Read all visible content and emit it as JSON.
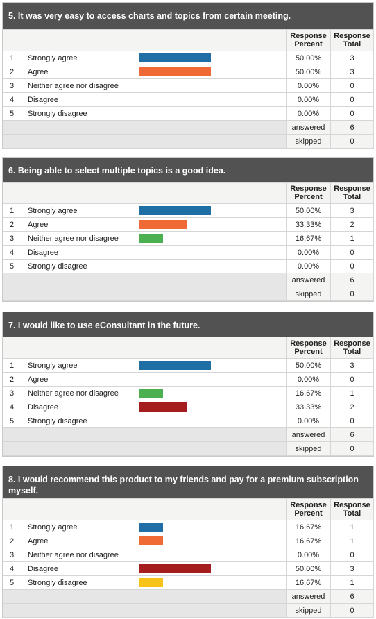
{
  "header": {
    "percent": "Response Percent",
    "total": "Response Total"
  },
  "footer": {
    "answered_label": "answered",
    "skipped_label": "skipped"
  },
  "colors": {
    "blue": "#1f6fa6",
    "orange": "#ef6a34",
    "green": "#4caf50",
    "red": "#a61d1d",
    "yellow": "#f7c21a"
  },
  "questions": [
    {
      "title": "5. It was very easy to access charts and topics from certain meeting.",
      "answered": "6",
      "skipped": "0",
      "rows": [
        {
          "n": "1",
          "label": "Strongly agree",
          "percent": "50.00%",
          "total": "3",
          "value": 50.0,
          "color": "#1f6fa6"
        },
        {
          "n": "2",
          "label": "Agree",
          "percent": "50.00%",
          "total": "3",
          "value": 50.0,
          "color": "#ef6a34"
        },
        {
          "n": "3",
          "label": "Neither agree nor disagree",
          "percent": "0.00%",
          "total": "0",
          "value": 0,
          "color": "#4caf50"
        },
        {
          "n": "4",
          "label": "Disagree",
          "percent": "0.00%",
          "total": "0",
          "value": 0,
          "color": "#a61d1d"
        },
        {
          "n": "5",
          "label": "Strongly disagree",
          "percent": "0.00%",
          "total": "0",
          "value": 0,
          "color": "#f7c21a"
        }
      ]
    },
    {
      "title": "6. Being able to select multiple topics is a good idea.",
      "answered": "6",
      "skipped": "0",
      "rows": [
        {
          "n": "1",
          "label": "Strongly agree",
          "percent": "50.00%",
          "total": "3",
          "value": 50.0,
          "color": "#1f6fa6"
        },
        {
          "n": "2",
          "label": "Agree",
          "percent": "33.33%",
          "total": "2",
          "value": 33.33,
          "color": "#ef6a34"
        },
        {
          "n": "3",
          "label": "Neither agree nor disagree",
          "percent": "16.67%",
          "total": "1",
          "value": 16.67,
          "color": "#4caf50"
        },
        {
          "n": "4",
          "label": "Disagree",
          "percent": "0.00%",
          "total": "0",
          "value": 0,
          "color": "#a61d1d"
        },
        {
          "n": "5",
          "label": "Strongly disagree",
          "percent": "0.00%",
          "total": "0",
          "value": 0,
          "color": "#f7c21a"
        }
      ]
    },
    {
      "title": "7. I would like to use eConsultant in the future.",
      "answered": "6",
      "skipped": "0",
      "rows": [
        {
          "n": "1",
          "label": "Strongly agree",
          "percent": "50.00%",
          "total": "3",
          "value": 50.0,
          "color": "#1f6fa6"
        },
        {
          "n": "2",
          "label": "Agree",
          "percent": "0.00%",
          "total": "0",
          "value": 0,
          "color": "#ef6a34"
        },
        {
          "n": "3",
          "label": "Neither agree nor disagree",
          "percent": "16.67%",
          "total": "1",
          "value": 16.67,
          "color": "#4caf50"
        },
        {
          "n": "4",
          "label": "Disagree",
          "percent": "33.33%",
          "total": "2",
          "value": 33.33,
          "color": "#a61d1d"
        },
        {
          "n": "5",
          "label": "Strongly disagree",
          "percent": "0.00%",
          "total": "0",
          "value": 0,
          "color": "#f7c21a"
        }
      ]
    },
    {
      "title": "8. I would recommend this product to my friends and pay for a premium subscription myself.",
      "answered": "6",
      "skipped": "0",
      "rows": [
        {
          "n": "1",
          "label": "Strongly agree",
          "percent": "16.67%",
          "total": "1",
          "value": 16.67,
          "color": "#1f6fa6"
        },
        {
          "n": "2",
          "label": "Agree",
          "percent": "16.67%",
          "total": "1",
          "value": 16.67,
          "color": "#ef6a34"
        },
        {
          "n": "3",
          "label": "Neither agree nor disagree",
          "percent": "0.00%",
          "total": "0",
          "value": 0,
          "color": "#4caf50"
        },
        {
          "n": "4",
          "label": "Disagree",
          "percent": "50.00%",
          "total": "3",
          "value": 50.0,
          "color": "#a61d1d"
        },
        {
          "n": "5",
          "label": "Strongly disagree",
          "percent": "16.67%",
          "total": "1",
          "value": 16.67,
          "color": "#f7c21a"
        }
      ]
    }
  ],
  "chart_data": [
    {
      "type": "bar",
      "title": "5. It was very easy to access charts and topics from certain meeting.",
      "categories": [
        "Strongly agree",
        "Agree",
        "Neither agree nor disagree",
        "Disagree",
        "Strongly disagree"
      ],
      "values": [
        50.0,
        50.0,
        0,
        0,
        0
      ]
    },
    {
      "type": "bar",
      "title": "6. Being able to select multiple topics is a good idea.",
      "categories": [
        "Strongly agree",
        "Agree",
        "Neither agree nor disagree",
        "Disagree",
        "Strongly disagree"
      ],
      "values": [
        50.0,
        33.33,
        16.67,
        0,
        0
      ]
    },
    {
      "type": "bar",
      "title": "7. I would like to use eConsultant in the future.",
      "categories": [
        "Strongly agree",
        "Agree",
        "Neither agree nor disagree",
        "Disagree",
        "Strongly disagree"
      ],
      "values": [
        50.0,
        0,
        16.67,
        33.33,
        0
      ]
    },
    {
      "type": "bar",
      "title": "8. I would recommend this product to my friends and pay for a premium subscription myself.",
      "categories": [
        "Strongly agree",
        "Agree",
        "Neither agree nor disagree",
        "Disagree",
        "Strongly disagree"
      ],
      "values": [
        16.67,
        16.67,
        0,
        50.0,
        16.67
      ]
    }
  ]
}
